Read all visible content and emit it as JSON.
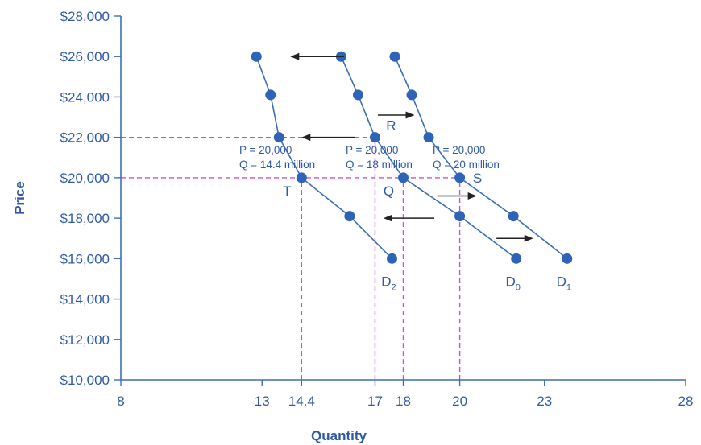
{
  "chart_data": {
    "type": "line",
    "xlabel": "Quantity",
    "ylabel": "Price",
    "xlim": [
      8,
      28
    ],
    "ylim": [
      10000,
      28000
    ],
    "x_ticks": [
      {
        "value": 8,
        "label": "8"
      },
      {
        "value": 13,
        "label": "13"
      },
      {
        "value": 14.4,
        "label": "14.4"
      },
      {
        "value": 17,
        "label": "17"
      },
      {
        "value": 18,
        "label": "18"
      },
      {
        "value": 20,
        "label": "20"
      },
      {
        "value": 23,
        "label": "23"
      },
      {
        "value": 28,
        "label": "28"
      }
    ],
    "y_ticks": [
      {
        "value": 10000,
        "label": "$10,000"
      },
      {
        "value": 12000,
        "label": "$12,000"
      },
      {
        "value": 14000,
        "label": "$14,000"
      },
      {
        "value": 16000,
        "label": "$16,000"
      },
      {
        "value": 18000,
        "label": "$18,000"
      },
      {
        "value": 20000,
        "label": "$20,000"
      },
      {
        "value": 22000,
        "label": "$22,000"
      },
      {
        "value": 24000,
        "label": "$24,000"
      },
      {
        "value": 26000,
        "label": "$26,000"
      },
      {
        "value": 28000,
        "label": "$28,000"
      }
    ],
    "grid": false,
    "series": [
      {
        "name_main": "D",
        "name_sub": "2",
        "points": [
          [
            12.8,
            26000
          ],
          [
            13.3,
            24100
          ],
          [
            13.6,
            22000
          ],
          [
            14.4,
            20000
          ],
          [
            16.1,
            18100
          ],
          [
            17.6,
            16000
          ]
        ]
      },
      {
        "name_main": "D",
        "name_sub": "0",
        "points": [
          [
            15.8,
            26000
          ],
          [
            16.4,
            24100
          ],
          [
            17.0,
            22000
          ],
          [
            18.0,
            20000
          ],
          [
            20.0,
            18100
          ],
          [
            22.0,
            16000
          ]
        ]
      },
      {
        "name_main": "D",
        "name_sub": "1",
        "points": [
          [
            17.7,
            26000
          ],
          [
            18.3,
            24100
          ],
          [
            18.9,
            22000
          ],
          [
            20.0,
            20000
          ],
          [
            21.9,
            18100
          ],
          [
            23.8,
            16000
          ]
        ]
      }
    ],
    "reference_lines": {
      "horizontal": [
        22000,
        20000
      ],
      "vertical": [
        14.4,
        17,
        18,
        20
      ]
    },
    "point_labels": [
      {
        "text": "T",
        "x": 14.4,
        "y": 20000
      },
      {
        "text": "Q",
        "x": 18,
        "y": 20000
      },
      {
        "text": "R",
        "x": 17,
        "y": 22000
      },
      {
        "text": "S",
        "x": 20,
        "y": 20000
      }
    ],
    "annotations": [
      {
        "line1": "P = 20,000",
        "line2": "Q = 14.4 million"
      },
      {
        "line1": "P = 20,000",
        "line2": "Q = 18 million"
      },
      {
        "line1": "P = 20,000",
        "line2": "Q = 20 million"
      }
    ],
    "arrows": [
      {
        "y": 26000,
        "from_x": 15.9,
        "to_x": 14.0
      },
      {
        "y": 22000,
        "from_x": 16.3,
        "to_x": 14.4
      },
      {
        "y": 18000,
        "from_x": 19.1,
        "to_x": 17.3
      },
      {
        "y": 23100,
        "from_x": 17.1,
        "to_x": 18.4
      },
      {
        "y": 19100,
        "from_x": 19.2,
        "to_x": 20.6
      },
      {
        "y": 17000,
        "from_x": 21.3,
        "to_x": 22.6
      }
    ]
  }
}
